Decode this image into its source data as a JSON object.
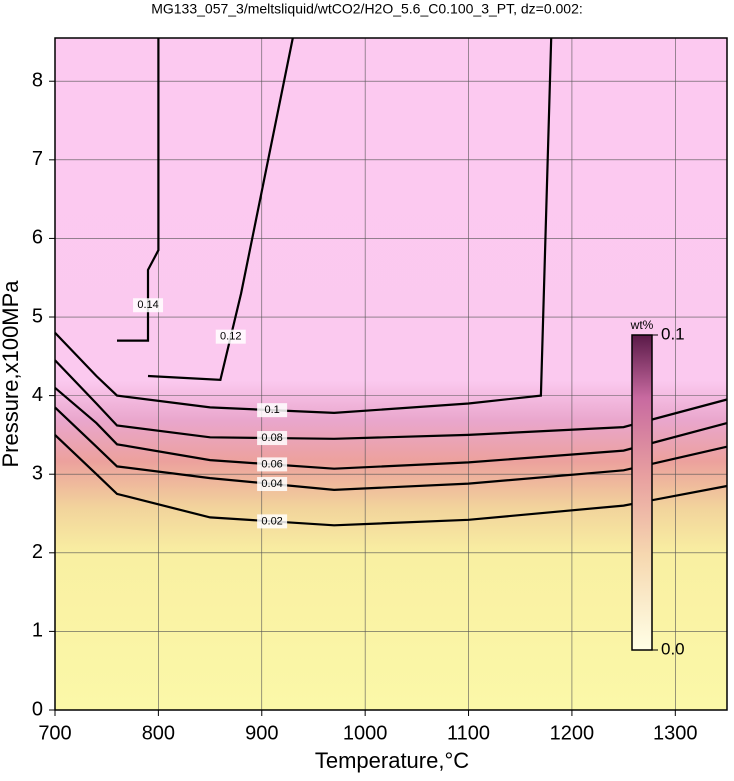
{
  "chart_data": {
    "type": "contour",
    "title": "MG133_057_3/meltsliquid/wtCO2/H2O_5.6_C0.100_3_PT, dz=0.002:",
    "x_label": "Temperature,°C",
    "y_label": "Pressure,x100MPa",
    "xlim": [
      700,
      1350
    ],
    "ylim": [
      0,
      8.55
    ],
    "xticks": [
      700,
      800,
      900,
      1000,
      1100,
      1200,
      1300
    ],
    "yticks": [
      0,
      1,
      2,
      3,
      4,
      5,
      6,
      7,
      8
    ],
    "grid": true,
    "series": [
      {
        "level": 0.02,
        "x": [
          700,
          740,
          760,
          850,
          970,
          1100,
          1250,
          1350
        ],
        "y": [
          3.5,
          3.0,
          2.75,
          2.45,
          2.35,
          2.42,
          2.6,
          2.85
        ]
      },
      {
        "level": 0.04,
        "x": [
          700,
          740,
          760,
          850,
          970,
          1100,
          1250,
          1350
        ],
        "y": [
          3.85,
          3.35,
          3.1,
          2.95,
          2.8,
          2.88,
          3.05,
          3.35
        ]
      },
      {
        "level": 0.06,
        "x": [
          700,
          740,
          760,
          850,
          970,
          1100,
          1250,
          1350
        ],
        "y": [
          4.1,
          3.65,
          3.38,
          3.18,
          3.07,
          3.15,
          3.3,
          3.65
        ]
      },
      {
        "level": 0.08,
        "x": [
          700,
          740,
          760,
          850,
          970,
          1100,
          1250,
          1350
        ],
        "y": [
          4.45,
          3.9,
          3.62,
          3.47,
          3.45,
          3.5,
          3.6,
          3.95
        ]
      },
      {
        "level": 0.1,
        "x": [
          700,
          740,
          760,
          850,
          970,
          1100,
          1170,
          1180
        ],
        "y": [
          4.8,
          4.25,
          4.0,
          3.85,
          3.78,
          3.9,
          4.0,
          8.55
        ]
      },
      {
        "level": 0.12,
        "x": [
          790,
          860,
          880,
          930
        ],
        "y": [
          4.25,
          4.2,
          5.3,
          8.55
        ]
      },
      {
        "level": 0.14,
        "x": [
          760,
          790,
          790,
          800,
          800
        ],
        "y": [
          4.7,
          4.7,
          5.6,
          5.85,
          8.55
        ]
      }
    ],
    "colorbar": {
      "label": "wt%",
      "lim": [
        0,
        0.1
      ],
      "ticks": [
        {
          "value": 0.1,
          "label": "0.1"
        },
        {
          "value": 0,
          "label": "0.0"
        }
      ]
    }
  }
}
